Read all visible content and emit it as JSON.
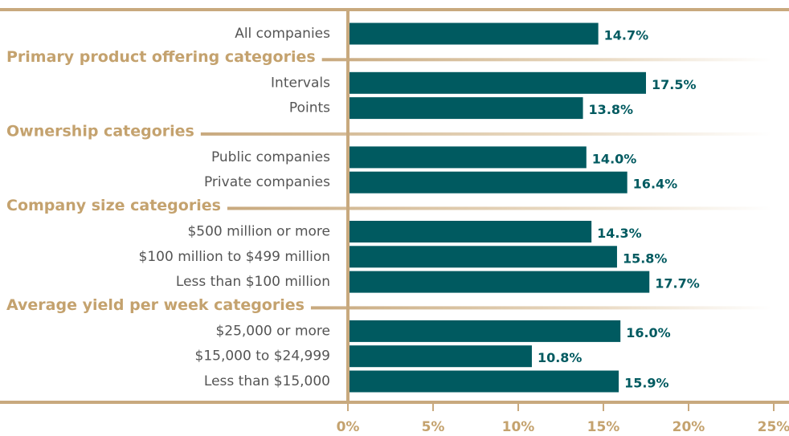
{
  "chart_data": {
    "type": "bar",
    "orientation": "horizontal",
    "color": "#005a60",
    "categories": [
      "All companies"
    ],
    "values": [
      14.7
    ],
    "value_labels": [
      "14.7%"
    ],
    "groups": [
      {
        "name": "Primary product offering categories",
        "categories": [
          "Intervals",
          "Points"
        ],
        "values": [
          17.5,
          13.8
        ],
        "value_labels": [
          "17.5%",
          "13.8%"
        ]
      },
      {
        "name": "Ownership categories",
        "categories": [
          "Public companies",
          "Private companies"
        ],
        "values": [
          14.0,
          16.4
        ],
        "value_labels": [
          "14.0%",
          "16.4%"
        ]
      },
      {
        "name": "Company size categories",
        "categories": [
          "$500 million or more",
          "$100 million to $499 million",
          "Less than $100 million"
        ],
        "values": [
          14.3,
          15.8,
          17.7
        ],
        "value_labels": [
          "14.3%",
          "15.8%",
          "17.7%"
        ]
      },
      {
        "name": "Average yield per week categories",
        "categories": [
          "$25,000 or more",
          "$15,000 to $24,999",
          "Less than $15,000"
        ],
        "values": [
          16.0,
          10.8,
          15.9
        ],
        "value_labels": [
          "16.0%",
          "10.8%",
          "15.9%"
        ]
      }
    ],
    "xlim": [
      0,
      25
    ],
    "xticks": [
      {
        "value": 0,
        "label": "0%"
      },
      {
        "value": 5,
        "label": "5%"
      },
      {
        "value": 10,
        "label": "10%"
      },
      {
        "value": 15,
        "label": "15%"
      },
      {
        "value": 20,
        "label": "20%"
      },
      {
        "value": 25,
        "label": "25%"
      }
    ]
  }
}
